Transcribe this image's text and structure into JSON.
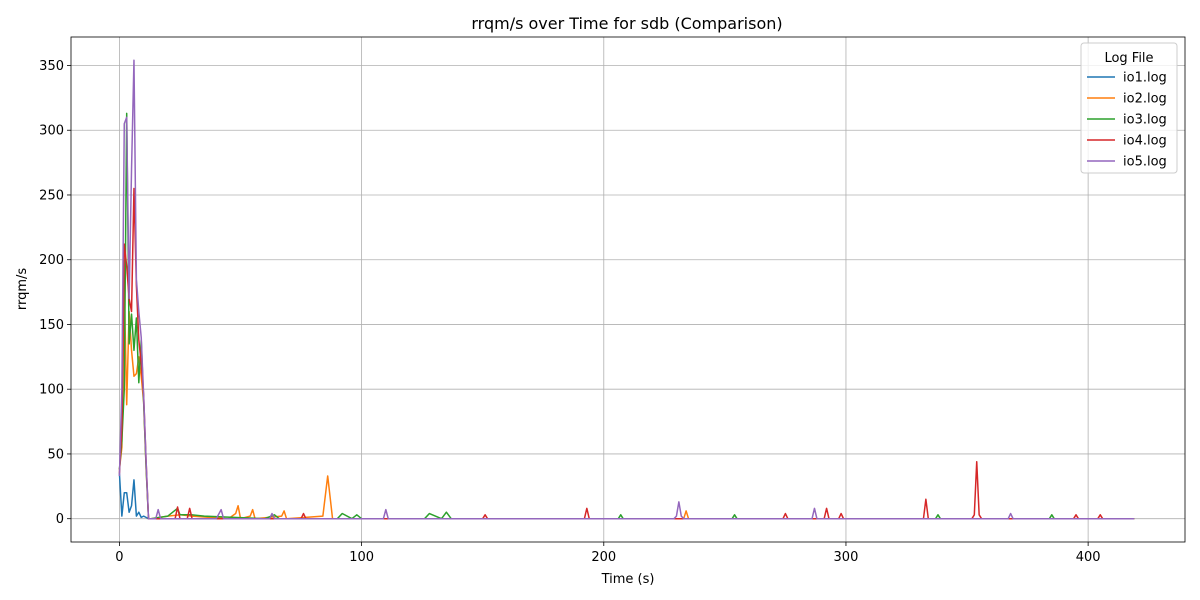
{
  "chart_data": {
    "type": "line",
    "title": "rrqm/s over Time for sdb (Comparison)",
    "xlabel": "Time (s)",
    "ylabel": "rrqm/s",
    "xlim": [
      -20,
      440
    ],
    "ylim": [
      -18,
      372
    ],
    "xticks": [
      0,
      100,
      200,
      300,
      400
    ],
    "yticks": [
      0,
      50,
      100,
      150,
      200,
      250,
      300,
      350
    ],
    "grid": true,
    "legend": {
      "title": "Log File",
      "placement": "top-right"
    },
    "series": [
      {
        "name": "io1.log",
        "color": "#1f77b4",
        "x": [
          0,
          1,
          2,
          3,
          4,
          5,
          6,
          7,
          8,
          9,
          10,
          11,
          12,
          13,
          20,
          60,
          120,
          200,
          300,
          419
        ],
        "y": [
          35,
          2,
          20,
          20,
          5,
          10,
          30,
          2,
          5,
          1,
          2,
          1,
          0,
          0,
          0,
          0,
          0,
          0,
          0,
          0
        ]
      },
      {
        "name": "io2.log",
        "color": "#ff7f0e",
        "x": [
          0,
          1,
          2,
          3,
          4,
          5,
          6,
          7,
          8,
          9,
          10,
          11,
          12,
          13,
          20,
          25,
          30,
          45,
          48,
          49,
          50,
          54,
          55,
          56,
          67,
          68,
          69,
          84,
          86,
          88,
          110,
          150,
          233,
          234,
          235,
          300,
          419
        ],
        "y": [
          38,
          55,
          180,
          88,
          160,
          130,
          110,
          112,
          125,
          110,
          90,
          40,
          0,
          0,
          2,
          3,
          2,
          0,
          4,
          10,
          0,
          2,
          7,
          0,
          2,
          6,
          0,
          2,
          33,
          0,
          0,
          0,
          0,
          6,
          0,
          0,
          0
        ]
      },
      {
        "name": "io3.log",
        "color": "#2ca02c",
        "x": [
          0,
          1,
          2,
          3,
          4,
          5,
          6,
          7,
          8,
          9,
          10,
          11,
          12,
          13,
          20,
          24,
          25,
          30,
          35,
          60,
          64,
          66,
          90,
          92,
          96,
          98,
          100,
          126,
          128,
          133,
          135,
          137,
          206,
          207,
          208,
          253,
          254,
          255,
          337,
          338,
          339,
          384,
          385,
          386,
          419
        ],
        "y": [
          38,
          60,
          100,
          313,
          135,
          158,
          130,
          155,
          105,
          138,
          90,
          40,
          0,
          0,
          2,
          8,
          3,
          3,
          2,
          0,
          3,
          0,
          0,
          4,
          0,
          3,
          0,
          0,
          4,
          0,
          5,
          0,
          0,
          3,
          0,
          0,
          3,
          0,
          0,
          3,
          0,
          0,
          3,
          0,
          0
        ]
      },
      {
        "name": "io4.log",
        "color": "#d62728",
        "x": [
          0,
          1,
          2,
          3,
          4,
          5,
          6,
          7,
          8,
          9,
          10,
          11,
          12,
          13,
          23,
          24,
          25,
          28,
          29,
          30,
          60,
          75,
          76,
          77,
          150,
          151,
          152,
          192,
          193,
          194,
          274,
          275,
          276,
          291,
          292,
          293,
          297,
          298,
          299,
          332,
          333,
          334,
          352,
          353,
          354,
          355,
          356,
          394,
          395,
          396,
          404,
          405,
          406,
          419
        ],
        "y": [
          35,
          70,
          212,
          195,
          170,
          160,
          255,
          180,
          138,
          120,
          95,
          45,
          0,
          0,
          0,
          9,
          0,
          0,
          8,
          0,
          0,
          0,
          4,
          0,
          0,
          3,
          0,
          0,
          8,
          0,
          0,
          4,
          0,
          0,
          8,
          0,
          0,
          4,
          0,
          0,
          15,
          0,
          0,
          3,
          44,
          3,
          0,
          0,
          3,
          0,
          0,
          3,
          0,
          0
        ]
      },
      {
        "name": "io5.log",
        "color": "#9467bd",
        "x": [
          0,
          1,
          2,
          3,
          4,
          5,
          6,
          7,
          8,
          9,
          10,
          11,
          12,
          13,
          15,
          16,
          17,
          40,
          42,
          43,
          44,
          62,
          63,
          64,
          109,
          110,
          111,
          229,
          230,
          231,
          232,
          233,
          286,
          287,
          288,
          300,
          367,
          368,
          369,
          419
        ],
        "y": [
          33,
          100,
          305,
          310,
          170,
          270,
          354,
          185,
          160,
          140,
          95,
          45,
          0,
          0,
          0,
          7,
          0,
          0,
          7,
          0,
          0,
          0,
          4,
          0,
          0,
          7,
          0,
          0,
          2,
          13,
          2,
          0,
          0,
          8,
          0,
          0,
          0,
          4,
          0,
          0
        ]
      }
    ]
  }
}
